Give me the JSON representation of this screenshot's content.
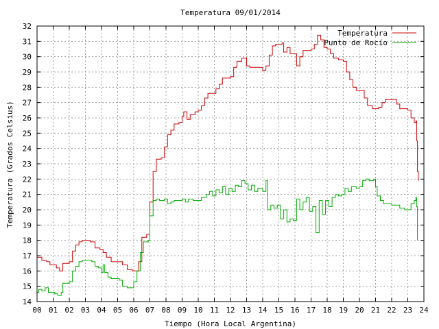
{
  "chart_data": {
    "type": "line",
    "title": "Temperatura 09/01/2014",
    "xlabel": "Tiempo (Hora Local Argentina)",
    "ylabel": "Temperatura (Grados Celsius)",
    "xlim": [
      0,
      24
    ],
    "ylim": [
      14,
      32
    ],
    "xticks": [
      "00",
      "01",
      "02",
      "03",
      "04",
      "05",
      "06",
      "07",
      "08",
      "09",
      "10",
      "11",
      "12",
      "13",
      "14",
      "15",
      "16",
      "17",
      "18",
      "19",
      "20",
      "21",
      "22",
      "23",
      "24"
    ],
    "yticks": [
      14,
      15,
      16,
      17,
      18,
      19,
      20,
      21,
      22,
      23,
      24,
      25,
      26,
      27,
      28,
      29,
      30,
      31,
      32
    ],
    "grid": true,
    "legend": "top-right",
    "series": [
      {
        "name": "Temperatura",
        "color": "#cc0000",
        "points": [
          [
            0.0,
            16.9
          ],
          [
            0.3,
            16.7
          ],
          [
            0.6,
            16.6
          ],
          [
            0.8,
            16.4
          ],
          [
            1.0,
            16.4
          ],
          [
            1.2,
            16.2
          ],
          [
            1.4,
            16.0
          ],
          [
            1.6,
            16.5
          ],
          [
            2.0,
            16.6
          ],
          [
            2.2,
            17.3
          ],
          [
            2.4,
            17.7
          ],
          [
            2.6,
            17.9
          ],
          [
            2.8,
            18.0
          ],
          [
            3.1,
            18.0
          ],
          [
            3.3,
            17.9
          ],
          [
            3.6,
            17.5
          ],
          [
            3.9,
            17.4
          ],
          [
            4.1,
            17.2
          ],
          [
            4.3,
            16.9
          ],
          [
            4.6,
            16.6
          ],
          [
            4.9,
            16.6
          ],
          [
            5.1,
            16.6
          ],
          [
            5.3,
            16.4
          ],
          [
            5.6,
            16.1
          ],
          [
            5.9,
            16.0
          ],
          [
            6.1,
            16.0
          ],
          [
            6.3,
            16.6
          ],
          [
            6.5,
            18.2
          ],
          [
            6.8,
            18.4
          ],
          [
            7.0,
            20.5
          ],
          [
            7.2,
            22.5
          ],
          [
            7.4,
            23.3
          ],
          [
            7.7,
            23.4
          ],
          [
            7.9,
            24.1
          ],
          [
            8.1,
            24.9
          ],
          [
            8.3,
            25.2
          ],
          [
            8.5,
            25.6
          ],
          [
            8.8,
            25.7
          ],
          [
            9.0,
            26.1
          ],
          [
            9.1,
            26.4
          ],
          [
            9.3,
            25.9
          ],
          [
            9.5,
            26.2
          ],
          [
            9.8,
            26.4
          ],
          [
            10.0,
            26.5
          ],
          [
            10.2,
            26.8
          ],
          [
            10.4,
            27.3
          ],
          [
            10.6,
            27.6
          ],
          [
            10.9,
            27.6
          ],
          [
            11.1,
            27.9
          ],
          [
            11.3,
            28.2
          ],
          [
            11.5,
            28.6
          ],
          [
            11.8,
            28.6
          ],
          [
            12.0,
            28.7
          ],
          [
            12.2,
            29.3
          ],
          [
            12.4,
            29.7
          ],
          [
            12.7,
            29.9
          ],
          [
            12.9,
            29.9
          ],
          [
            13.0,
            29.4
          ],
          [
            13.2,
            29.3
          ],
          [
            13.5,
            29.3
          ],
          [
            13.8,
            29.3
          ],
          [
            14.0,
            29.1
          ],
          [
            14.2,
            29.4
          ],
          [
            14.4,
            30.1
          ],
          [
            14.6,
            30.7
          ],
          [
            14.8,
            30.8
          ],
          [
            15.0,
            30.8
          ],
          [
            15.2,
            30.9
          ],
          [
            15.3,
            30.3
          ],
          [
            15.5,
            30.6
          ],
          [
            15.7,
            30.2
          ],
          [
            15.9,
            30.2
          ],
          [
            16.1,
            29.4
          ],
          [
            16.3,
            30.0
          ],
          [
            16.5,
            30.4
          ],
          [
            16.8,
            30.4
          ],
          [
            17.0,
            30.5
          ],
          [
            17.2,
            30.8
          ],
          [
            17.4,
            31.4
          ],
          [
            17.6,
            31.1
          ],
          [
            17.8,
            30.6
          ],
          [
            18.0,
            30.5
          ],
          [
            18.2,
            30.2
          ],
          [
            18.4,
            29.9
          ],
          [
            18.7,
            29.8
          ],
          [
            19.0,
            29.7
          ],
          [
            19.2,
            29.0
          ],
          [
            19.4,
            28.5
          ],
          [
            19.6,
            28.0
          ],
          [
            19.8,
            27.8
          ],
          [
            20.1,
            27.8
          ],
          [
            20.3,
            27.3
          ],
          [
            20.5,
            26.8
          ],
          [
            20.8,
            26.6
          ],
          [
            21.0,
            26.6
          ],
          [
            21.2,
            26.7
          ],
          [
            21.4,
            27.0
          ],
          [
            21.6,
            27.2
          ],
          [
            21.9,
            27.2
          ],
          [
            22.1,
            27.2
          ],
          [
            22.3,
            26.9
          ],
          [
            22.5,
            26.6
          ],
          [
            22.8,
            26.6
          ],
          [
            23.0,
            26.5
          ],
          [
            23.2,
            26.0
          ],
          [
            23.4,
            25.7
          ],
          [
            23.5,
            25.8
          ],
          [
            23.55,
            24.5
          ],
          [
            23.6,
            22.5
          ],
          [
            23.65,
            21.9
          ]
        ]
      },
      {
        "name": "Punto de Rocío",
        "color": "#00aa00",
        "points": [
          [
            0.0,
            14.6
          ],
          [
            0.1,
            14.8
          ],
          [
            0.3,
            14.7
          ],
          [
            0.5,
            14.9
          ],
          [
            0.7,
            14.6
          ],
          [
            0.9,
            14.6
          ],
          [
            1.1,
            14.5
          ],
          [
            1.3,
            14.4
          ],
          [
            1.5,
            14.6
          ],
          [
            1.6,
            15.2
          ],
          [
            2.0,
            15.3
          ],
          [
            2.2,
            16.0
          ],
          [
            2.4,
            16.3
          ],
          [
            2.6,
            16.6
          ],
          [
            2.8,
            16.7
          ],
          [
            3.1,
            16.7
          ],
          [
            3.4,
            16.6
          ],
          [
            3.6,
            16.3
          ],
          [
            3.8,
            16.2
          ],
          [
            4.0,
            15.9
          ],
          [
            4.1,
            16.4
          ],
          [
            4.2,
            15.9
          ],
          [
            4.4,
            15.6
          ],
          [
            4.6,
            15.5
          ],
          [
            4.9,
            15.5
          ],
          [
            5.1,
            15.4
          ],
          [
            5.3,
            15.0
          ],
          [
            5.6,
            14.9
          ],
          [
            5.9,
            14.9
          ],
          [
            6.0,
            15.3
          ],
          [
            6.2,
            16.0
          ],
          [
            6.4,
            17.2
          ],
          [
            6.6,
            17.9
          ],
          [
            6.9,
            18.0
          ],
          [
            7.0,
            19.6
          ],
          [
            7.2,
            20.6
          ],
          [
            7.4,
            20.7
          ],
          [
            7.6,
            20.6
          ],
          [
            7.9,
            20.7
          ],
          [
            8.1,
            20.4
          ],
          [
            8.3,
            20.5
          ],
          [
            8.5,
            20.6
          ],
          [
            8.8,
            20.6
          ],
          [
            9.0,
            20.7
          ],
          [
            9.2,
            20.5
          ],
          [
            9.4,
            20.7
          ],
          [
            9.7,
            20.6
          ],
          [
            10.0,
            20.6
          ],
          [
            10.2,
            20.8
          ],
          [
            10.5,
            21.0
          ],
          [
            10.7,
            21.2
          ],
          [
            10.9,
            20.9
          ],
          [
            11.1,
            21.3
          ],
          [
            11.3,
            21.1
          ],
          [
            11.5,
            21.5
          ],
          [
            11.7,
            21.0
          ],
          [
            11.9,
            21.4
          ],
          [
            12.1,
            21.2
          ],
          [
            12.3,
            21.6
          ],
          [
            12.5,
            21.5
          ],
          [
            12.7,
            21.9
          ],
          [
            12.9,
            21.7
          ],
          [
            13.1,
            21.3
          ],
          [
            13.3,
            21.6
          ],
          [
            13.5,
            21.2
          ],
          [
            13.7,
            21.4
          ],
          [
            14.0,
            21.2
          ],
          [
            14.2,
            21.9
          ],
          [
            14.3,
            20.0
          ],
          [
            14.5,
            20.3
          ],
          [
            14.7,
            20.1
          ],
          [
            14.9,
            20.3
          ],
          [
            15.1,
            19.4
          ],
          [
            15.3,
            20.0
          ],
          [
            15.5,
            19.2
          ],
          [
            15.7,
            19.4
          ],
          [
            15.9,
            19.3
          ],
          [
            16.1,
            20.7
          ],
          [
            16.3,
            20.0
          ],
          [
            16.5,
            20.5
          ],
          [
            16.7,
            20.8
          ],
          [
            16.9,
            19.9
          ],
          [
            17.1,
            20.2
          ],
          [
            17.3,
            18.5
          ],
          [
            17.5,
            20.6
          ],
          [
            17.7,
            19.7
          ],
          [
            17.9,
            20.6
          ],
          [
            18.1,
            20.2
          ],
          [
            18.3,
            20.8
          ],
          [
            18.5,
            21.0
          ],
          [
            18.7,
            20.9
          ],
          [
            18.9,
            21.0
          ],
          [
            19.1,
            21.4
          ],
          [
            19.3,
            21.2
          ],
          [
            19.5,
            21.5
          ],
          [
            19.8,
            21.4
          ],
          [
            20.0,
            21.5
          ],
          [
            20.2,
            21.9
          ],
          [
            20.4,
            22.0
          ],
          [
            20.6,
            21.9
          ],
          [
            20.9,
            22.0
          ],
          [
            21.0,
            21.5
          ],
          [
            21.1,
            20.9
          ],
          [
            21.3,
            20.6
          ],
          [
            21.5,
            20.4
          ],
          [
            21.8,
            20.4
          ],
          [
            22.0,
            20.3
          ],
          [
            22.3,
            20.3
          ],
          [
            22.5,
            20.1
          ],
          [
            22.8,
            20.0
          ],
          [
            23.0,
            20.0
          ],
          [
            23.2,
            20.4
          ],
          [
            23.4,
            20.6
          ],
          [
            23.5,
            20.8
          ],
          [
            23.55,
            20.2
          ],
          [
            23.6,
            18.0
          ]
        ]
      }
    ]
  }
}
